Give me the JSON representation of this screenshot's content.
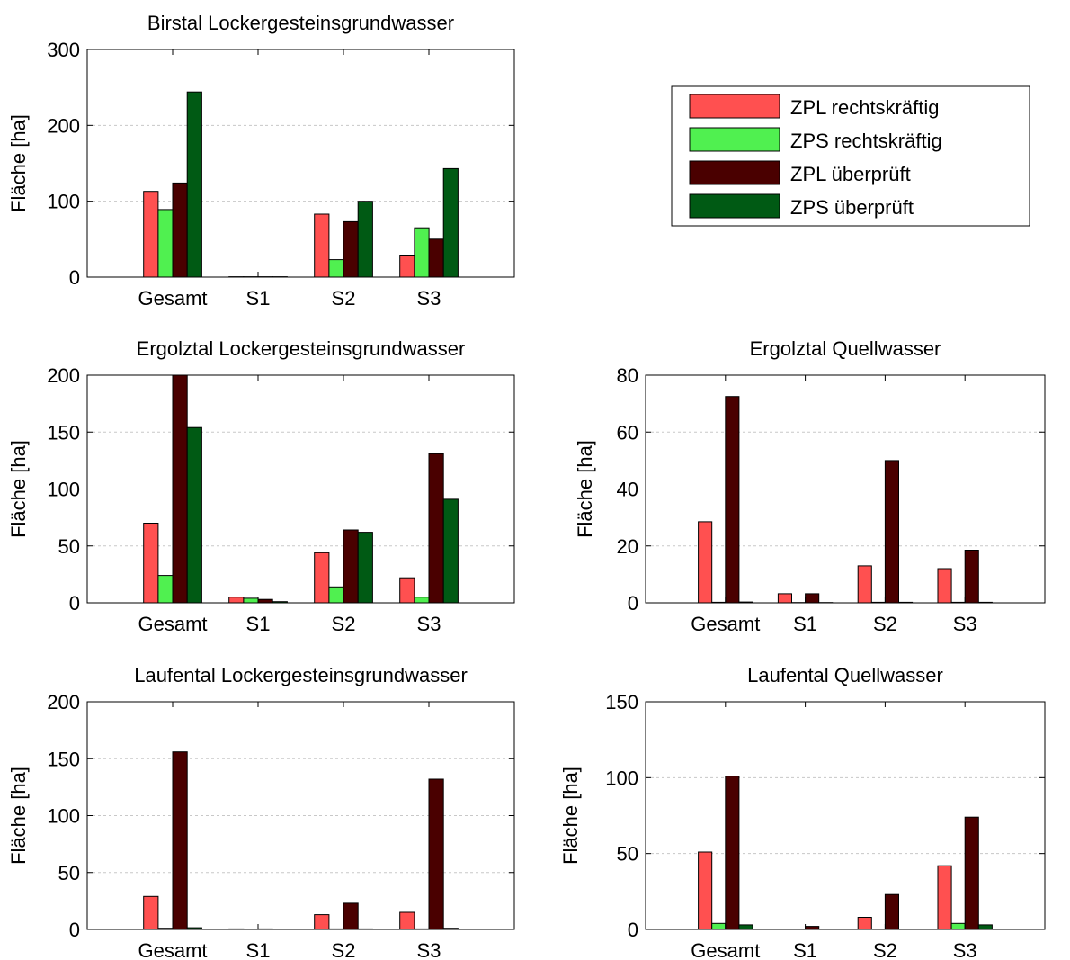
{
  "legend": {
    "placement": "top-right",
    "entries": [
      {
        "label": "ZPL rechtskräftig",
        "color": "#ff5050"
      },
      {
        "label": "ZPS rechtskräftig",
        "color": "#50f050"
      },
      {
        "label": "ZPL überprüft",
        "color": "#4a0000"
      },
      {
        "label": "ZPS überprüft",
        "color": "#005a14"
      }
    ]
  },
  "chart_data": [
    {
      "type": "bar",
      "title": "Birstal Lockergesteinsgrundwasser",
      "ylabel": "Fläche [ha]",
      "categories": [
        "Gesamt",
        "S1",
        "S2",
        "S3"
      ],
      "ylim": [
        0,
        300
      ],
      "yticks": [
        0,
        100,
        200,
        300
      ],
      "grid": true,
      "series": [
        {
          "name": "ZPL rechtskräftig",
          "values": [
            113,
            0.5,
            83,
            29
          ]
        },
        {
          "name": "ZPS rechtskräftig",
          "values": [
            89,
            0.5,
            23,
            65
          ]
        },
        {
          "name": "ZPL überprüft",
          "values": [
            124,
            0.5,
            73,
            50
          ]
        },
        {
          "name": "ZPS überprüft",
          "values": [
            244,
            0.5,
            100,
            143
          ]
        }
      ]
    },
    {
      "type": "bar",
      "title": "Ergolztal Lockergesteinsgrundwasser",
      "ylabel": "Fläche [ha]",
      "categories": [
        "Gesamt",
        "S1",
        "S2",
        "S3"
      ],
      "ylim": [
        0,
        200
      ],
      "yticks": [
        0,
        50,
        100,
        150,
        200
      ],
      "grid": true,
      "series": [
        {
          "name": "ZPL rechtskräftig",
          "values": [
            70,
            5,
            44,
            22
          ]
        },
        {
          "name": "ZPS rechtskräftig",
          "values": [
            24,
            4,
            14,
            5
          ]
        },
        {
          "name": "ZPL überprüft",
          "values": [
            200,
            3,
            64,
            131
          ]
        },
        {
          "name": "ZPS überprüft",
          "values": [
            154,
            1,
            62,
            91
          ]
        }
      ]
    },
    {
      "type": "bar",
      "title": "Ergolztal Quellwasser",
      "ylabel": "Fläche [ha]",
      "categories": [
        "Gesamt",
        "S1",
        "S2",
        "S3"
      ],
      "ylim": [
        0,
        80
      ],
      "yticks": [
        0,
        20,
        40,
        60,
        80
      ],
      "grid": true,
      "series": [
        {
          "name": "ZPL rechtskräftig",
          "values": [
            28.5,
            3.2,
            13,
            12
          ]
        },
        {
          "name": "ZPS rechtskräftig",
          "values": [
            0.2,
            0.1,
            0.2,
            0.2
          ]
        },
        {
          "name": "ZPL überprüft",
          "values": [
            72.5,
            3.2,
            50,
            18.5
          ]
        },
        {
          "name": "ZPS überprüft",
          "values": [
            0.3,
            0.1,
            0.2,
            0.2
          ]
        }
      ]
    },
    {
      "type": "bar",
      "title": "Laufental Lockergesteinsgrundwasser",
      "ylabel": "Fläche [ha]",
      "categories": [
        "Gesamt",
        "S1",
        "S2",
        "S3"
      ],
      "ylim": [
        0,
        200
      ],
      "yticks": [
        0,
        50,
        100,
        150,
        200
      ],
      "grid": true,
      "series": [
        {
          "name": "ZPL rechtskräftig",
          "values": [
            29,
            0.5,
            13,
            15
          ]
        },
        {
          "name": "ZPS rechtskräftig",
          "values": [
            1,
            0.3,
            0.5,
            0.5
          ]
        },
        {
          "name": "ZPL überprüft",
          "values": [
            156,
            0.5,
            23,
            132
          ]
        },
        {
          "name": "ZPS überprüft",
          "values": [
            1.5,
            0.3,
            0.5,
            1
          ]
        }
      ]
    },
    {
      "type": "bar",
      "title": "Laufental Quellwasser",
      "ylabel": "Fläche [ha]",
      "categories": [
        "Gesamt",
        "S1",
        "S2",
        "S3"
      ],
      "ylim": [
        0,
        150
      ],
      "yticks": [
        0,
        50,
        100,
        150
      ],
      "grid": true,
      "series": [
        {
          "name": "ZPL rechtskräftig",
          "values": [
            51,
            0.3,
            8,
            42
          ]
        },
        {
          "name": "ZPS rechtskräftig",
          "values": [
            4,
            0.2,
            0.3,
            4
          ]
        },
        {
          "name": "ZPL überprüft",
          "values": [
            101,
            2,
            23,
            74
          ]
        },
        {
          "name": "ZPS überprüft",
          "values": [
            3,
            0.2,
            0.3,
            3
          ]
        }
      ]
    }
  ]
}
